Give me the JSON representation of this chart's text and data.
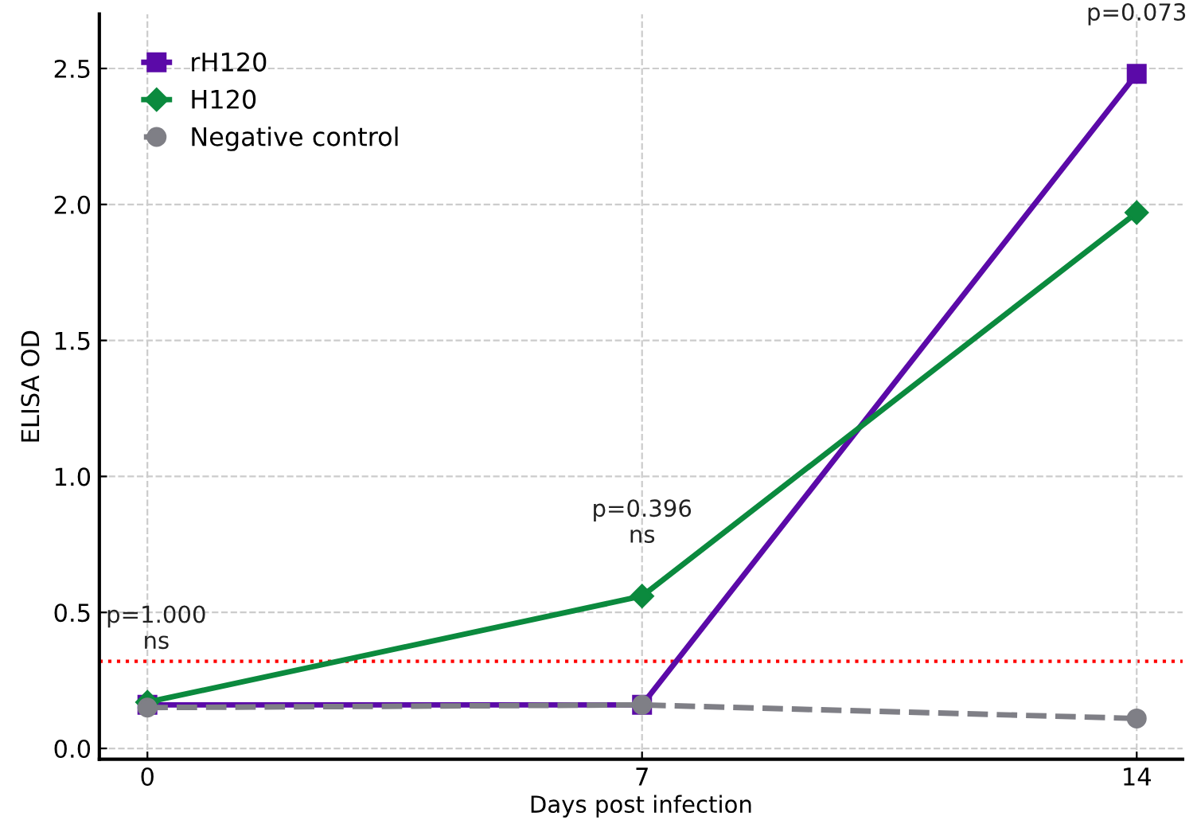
{
  "chart_data": {
    "type": "line",
    "xlabel": "Days post infection",
    "ylabel": "ELISA OD",
    "x": [
      0,
      7,
      14
    ],
    "series": [
      {
        "name": "rH120",
        "color": "#5b0aa8",
        "values": [
          0.16,
          0.16,
          2.48
        ],
        "marker": "square",
        "line_style": "solid"
      },
      {
        "name": "H120",
        "color": "#0b8a3e",
        "values": [
          0.17,
          0.56,
          1.97
        ],
        "marker": "diamond",
        "line_style": "solid"
      },
      {
        "name": "Negative control",
        "color": "#7f7f86",
        "values": [
          0.15,
          0.16,
          0.11
        ],
        "marker": "circle",
        "line_style": "dashed"
      }
    ],
    "xlim": [
      -0.68,
      14.65
    ],
    "xticks": [
      0,
      7,
      14
    ],
    "ylim": [
      -0.04,
      2.7
    ],
    "yticks": [
      {
        "value": 0,
        "label": "0.0"
      },
      0.5,
      {
        "value": 1,
        "label": "1.0"
      },
      1.5,
      {
        "value": 2,
        "label": "2.0"
      },
      2.5
    ],
    "ref_lines": [
      {
        "axis": "y",
        "value": 0.32,
        "color": "#ff0000",
        "line_style": "dotted"
      }
    ],
    "annotations": [
      "p=1.000\nns",
      "p=0.396\nns",
      "p=0.073"
    ],
    "grid": true,
    "legend": "top left"
  }
}
